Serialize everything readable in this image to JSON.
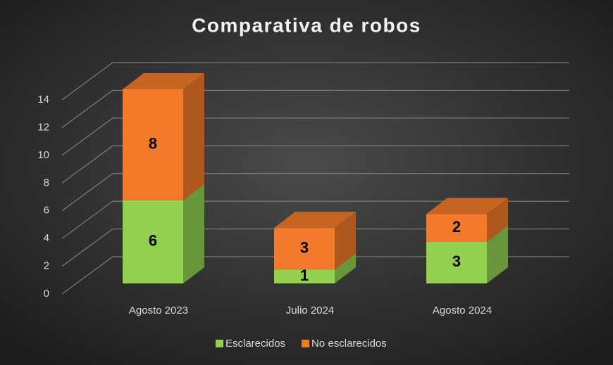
{
  "chart_data": {
    "type": "bar3d_stacked",
    "title": "Comparativa de robos",
    "categories": [
      "Agosto 2023",
      "Julio 2024",
      "Agosto 2024"
    ],
    "series": [
      {
        "name": "Esclarecidos",
        "color": "#92d050",
        "values": [
          6,
          1,
          3
        ]
      },
      {
        "name": "No esclarecidos",
        "color": "#f27a2a",
        "values": [
          8,
          3,
          2
        ]
      }
    ],
    "ylim": [
      0,
      14
    ],
    "yticks": [
      0,
      2,
      4,
      6,
      8,
      10,
      12,
      14
    ],
    "grid": true,
    "legend": "bottom"
  }
}
